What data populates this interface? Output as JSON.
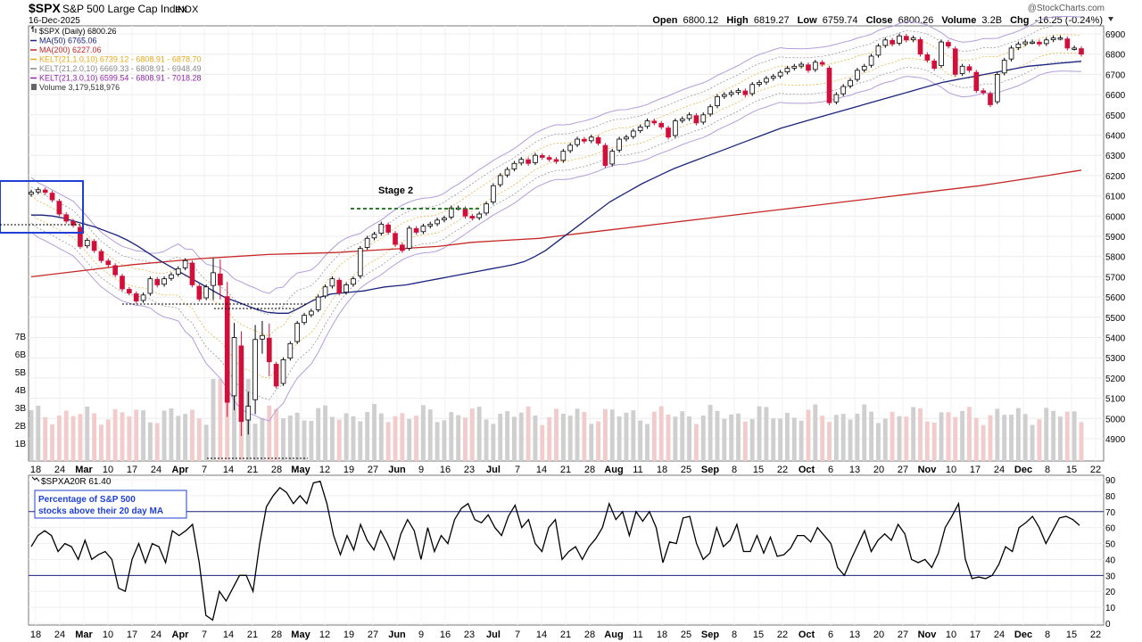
{
  "header": {
    "symbol": "$SPX",
    "name": "S&P 500 Large Cap Index",
    "exchange": "INDX",
    "date": "16-Dec-2025",
    "copyright": "@StockCharts.com",
    "open_label": "Open",
    "open": "6800.12",
    "high_label": "High",
    "high": "6819.27",
    "low_label": "Low",
    "low": "6759.74",
    "close_label": "Close",
    "close": "6800.26",
    "volume_label": "Volume",
    "volume": "3.2B",
    "chg_label": "Chg",
    "chg": "-16.25 (-0.24%)"
  },
  "legend": [
    {
      "text": "$SPX (Daily) 6800.26",
      "color": "#000000"
    },
    {
      "text": "MA(50) 6765.06",
      "color": "#1a237e"
    },
    {
      "text": "MA(200) 6227.06",
      "color": "#c62828"
    },
    {
      "text": "KELT(21,1.0,10) 6739.12 - 6808.91 - 6878.70",
      "color": "#e6a817"
    },
    {
      "text": "KELT(21,2.0,10) 6669.33 - 6808.91 - 6948.49",
      "color": "#888888"
    },
    {
      "text": "KELT(21,3.0,10) 6599.54 - 6808.91 - 7018.28",
      "color": "#8e24aa"
    },
    {
      "text": "Volume 3,179,518,976",
      "color": "#333333"
    }
  ],
  "annotations": {
    "stage2": "Stage 2",
    "indicator_box": [
      "Percentage of S&P 500",
      "stocks above their 20 day MA"
    ],
    "indicator_legend": "$SPXA20R 61.40"
  },
  "colors": {
    "up": "#ffffff",
    "down": "#d0103a",
    "ma50": "#1a237e",
    "ma200": "#c62828",
    "kelt1": "#e6b84a",
    "kelt2": "#999999",
    "kelt3": "#b39ddb",
    "vol_up": "#cfcfcf",
    "vol_down": "#f2cccc",
    "stage_box": "#1f3fd6",
    "stage2_line": "#2e7d32"
  },
  "chart_data": [
    {
      "type": "candlestick",
      "title": "$SPX S&P 500 Large Cap Index",
      "y_ticks": [
        4900,
        5000,
        5100,
        5200,
        5300,
        5400,
        5500,
        5600,
        5700,
        5800,
        5900,
        6000,
        6100,
        6200,
        6300,
        6400,
        6500,
        6600,
        6700,
        6800,
        6900
      ],
      "ylim": [
        4820,
        6950
      ],
      "volume_ticks": [
        "1B",
        "2B",
        "3B",
        "4B",
        "5B",
        "6B",
        "7B"
      ],
      "volume_ylim": [
        0,
        8
      ],
      "x_tick_labels": [
        "18",
        "24",
        "Mar",
        "10",
        "17",
        "24",
        "Apr",
        "7",
        "14",
        "21",
        "28",
        "May",
        "12",
        "19",
        "27",
        "Jun",
        "9",
        "16",
        "23",
        "Jul",
        "7",
        "14",
        "21",
        "28",
        "Aug",
        "11",
        "18",
        "25",
        "Sep",
        "8",
        "15",
        "22",
        "Oct",
        "6",
        "13",
        "20",
        "27",
        "Nov",
        "10",
        "17",
        "24",
        "Dec",
        "8",
        "15",
        "22"
      ],
      "x_tick_bold": [
        "Mar",
        "Apr",
        "May",
        "Jun",
        "Jul",
        "Aug",
        "Sep",
        "Oct",
        "Nov",
        "Dec"
      ],
      "close": [
        6118,
        6130,
        6117,
        6080,
        6010,
        5975,
        5955,
        5850,
        5880,
        5830,
        5780,
        5760,
        5710,
        5640,
        5620,
        5580,
        5610,
        5690,
        5660,
        5690,
        5710,
        5740,
        5780,
        5660,
        5590,
        5650,
        5720,
        5660,
        5080,
        5400,
        4985,
        5060,
        5390,
        5410,
        5280,
        5160,
        5290,
        5370,
        5470,
        5510,
        5530,
        5600,
        5650,
        5690,
        5620,
        5660,
        5690,
        5840,
        5890,
        5910,
        5960,
        5920,
        5860,
        5830,
        5940,
        5920,
        5950,
        5960,
        5980,
        5990,
        6040,
        6040,
        6000,
        5990,
        6010,
        6060,
        6150,
        6200,
        6230,
        6260,
        6280,
        6260,
        6300,
        6290,
        6280,
        6270,
        6320,
        6350,
        6380,
        6370,
        6390,
        6360,
        6250,
        6320,
        6380,
        6390,
        6420,
        6440,
        6470,
        6460,
        6440,
        6390,
        6470,
        6480,
        6500,
        6460,
        6500,
        6540,
        6590,
        6600,
        6610,
        6620,
        6600,
        6650,
        6660,
        6680,
        6690,
        6710,
        6730,
        6740,
        6750,
        6720,
        6760,
        6750,
        6560,
        6600,
        6640,
        6670,
        6720,
        6740,
        6790,
        6840,
        6870,
        6850,
        6890,
        6870,
        6880,
        6800,
        6770,
        6730,
        6860,
        6840,
        6700,
        6740,
        6720,
        6620,
        6610,
        6550,
        6700,
        6770,
        6830,
        6850,
        6860,
        6860,
        6850,
        6870,
        6880,
        6880,
        6830,
        6830,
        6800
      ],
      "ma50": [
        6005,
        6005,
        6000,
        5990,
        5975,
        5960,
        5945,
        5925,
        5905,
        5880,
        5850,
        5815,
        5780,
        5750,
        5720,
        5690,
        5660,
        5630,
        5600,
        5580,
        5560,
        5540,
        5525,
        5520,
        5520,
        5545,
        5575,
        5600,
        5615,
        5620,
        5625,
        5630,
        5640,
        5650,
        5655,
        5660,
        5670,
        5680,
        5690,
        5700,
        5710,
        5720,
        5730,
        5740,
        5750,
        5760,
        5775,
        5800,
        5830,
        5870,
        5910,
        5950,
        5990,
        6030,
        6070,
        6100,
        6130,
        6160,
        6185,
        6210,
        6235,
        6255,
        6275,
        6295,
        6315,
        6335,
        6355,
        6375,
        6395,
        6415,
        6435,
        6450,
        6465,
        6480,
        6495,
        6510,
        6525,
        6540,
        6555,
        6570,
        6585,
        6600,
        6615,
        6630,
        6645,
        6660,
        6670,
        6680,
        6690,
        6700,
        6710,
        6720,
        6730,
        6740,
        6745,
        6750,
        6755,
        6760,
        6765
      ],
      "ma200": [
        5700,
        5720,
        5740,
        5760,
        5775,
        5790,
        5800,
        5810,
        5815,
        5820,
        5830,
        5840,
        5850,
        5870,
        5880,
        5890,
        5910,
        5930,
        5950,
        5970,
        5990,
        6010,
        6030,
        6050,
        6070,
        6090,
        6110,
        6130,
        6150,
        6175,
        6200,
        6227
      ]
    },
    {
      "type": "line",
      "title": "$SPXA20R",
      "series_name": "Percentage of S&P 500 stocks above their 20 day MA",
      "y_ticks": [
        0,
        10,
        20,
        30,
        40,
        50,
        60,
        70,
        80,
        90
      ],
      "ylim": [
        0,
        92
      ],
      "hlines": [
        70,
        30
      ],
      "values": [
        48,
        55,
        58,
        55,
        45,
        50,
        48,
        40,
        52,
        40,
        43,
        45,
        40,
        22,
        20,
        40,
        50,
        38,
        50,
        48,
        38,
        58,
        55,
        58,
        62,
        38,
        5,
        2,
        20,
        14,
        22,
        30,
        30,
        20,
        50,
        73,
        80,
        85,
        82,
        75,
        80,
        75,
        88,
        89,
        75,
        55,
        43,
        55,
        46,
        62,
        52,
        46,
        58,
        50,
        40,
        56,
        65,
        58,
        40,
        60,
        45,
        55,
        50,
        65,
        72,
        75,
        65,
        63,
        68,
        60,
        55,
        67,
        74,
        60,
        65,
        50,
        45,
        60,
        65,
        40,
        45,
        48,
        40,
        48,
        53,
        60,
        75,
        65,
        70,
        55,
        70,
        64,
        70,
        60,
        38,
        51,
        50,
        66,
        67,
        50,
        40,
        44,
        60,
        48,
        52,
        62,
        45,
        45,
        55,
        44,
        54,
        42,
        43,
        47,
        55,
        55,
        51,
        60,
        55,
        50,
        35,
        30,
        40,
        49,
        58,
        45,
        52,
        56,
        52,
        62,
        56,
        40,
        38,
        40,
        35,
        44,
        60,
        67,
        75,
        40,
        28,
        29,
        28,
        30,
        37,
        48,
        45,
        60,
        63,
        67,
        60,
        50,
        58,
        66,
        67,
        65,
        61.4
      ]
    }
  ]
}
